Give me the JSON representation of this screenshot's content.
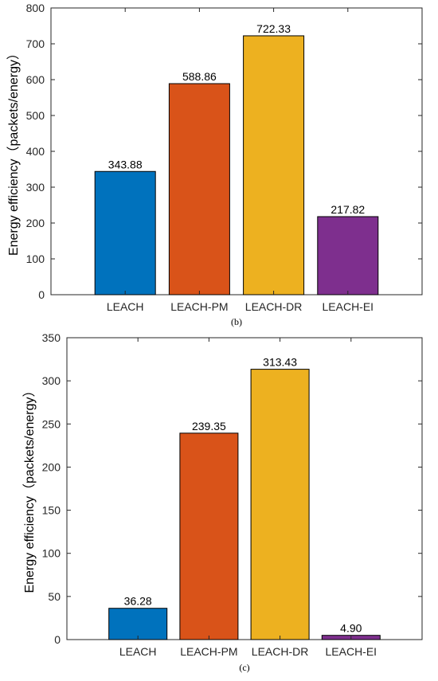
{
  "chart_data": [
    {
      "type": "bar",
      "categories": [
        "LEACH",
        "LEACH-PM",
        "LEACH-DR",
        "LEACH-EI"
      ],
      "values": [
        343.88,
        588.86,
        722.33,
        217.82
      ],
      "value_labels": [
        "343.88",
        "588.86",
        "722.33",
        "217.82"
      ],
      "colors": [
        "#0072BD",
        "#D95319",
        "#EDB120",
        "#7E2F8E"
      ],
      "ylabel": "Energy efficiency（packets/energy）",
      "ylim": [
        0,
        800
      ],
      "yticks": [
        0,
        100,
        200,
        300,
        400,
        500,
        600,
        700,
        800
      ],
      "caption": "(b)",
      "grid": false
    },
    {
      "type": "bar",
      "categories": [
        "LEACH",
        "LEACH-PM",
        "LEACH-DR",
        "LEACH-EI"
      ],
      "values": [
        36.28,
        239.35,
        313.43,
        4.9
      ],
      "value_labels": [
        "36.28",
        "239.35",
        "313.43",
        "4.90"
      ],
      "colors": [
        "#0072BD",
        "#D95319",
        "#EDB120",
        "#7E2F8E"
      ],
      "ylabel": "Energy efficiency（packets/energy）",
      "ylim": [
        0,
        350
      ],
      "yticks": [
        0,
        50,
        100,
        150,
        200,
        250,
        300,
        350
      ],
      "caption": "(c)",
      "grid": false
    }
  ]
}
